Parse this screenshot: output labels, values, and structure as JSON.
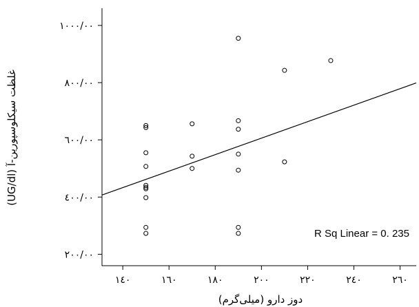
{
  "chart_data": {
    "type": "scatter",
    "title": "",
    "xlabel": "دوز دارو (میلی‌گرم)",
    "ylabel": "غلظت سیکلوسپورین-آ (UG/dl)",
    "xlim": [
      131,
      267
    ],
    "ylim": [
      160,
      1060
    ],
    "x_ticks": [
      140,
      160,
      180,
      200,
      220,
      240,
      260
    ],
    "x_tick_labels": [
      "١٤٠",
      "١٦٠",
      "١٨٠",
      "٢٠٠",
      "٢٢٠",
      "٢٤٠",
      "٢٦٠"
    ],
    "y_ticks": [
      200,
      400,
      600,
      800,
      1000
    ],
    "y_tick_labels": [
      "٢٠٠/٠٠",
      "٤٠٠/٠٠",
      "٦٠٠/٠٠",
      "٨٠٠/٠٠",
      "١٠٠٠/٠٠"
    ],
    "grid": false,
    "legend": "none",
    "points": [
      {
        "x": 150,
        "y": 650
      },
      {
        "x": 150,
        "y": 643
      },
      {
        "x": 150,
        "y": 555
      },
      {
        "x": 150,
        "y": 507
      },
      {
        "x": 150,
        "y": 441
      },
      {
        "x": 150,
        "y": 434
      },
      {
        "x": 150,
        "y": 429
      },
      {
        "x": 150,
        "y": 398
      },
      {
        "x": 150,
        "y": 294
      },
      {
        "x": 150,
        "y": 273
      },
      {
        "x": 170,
        "y": 656
      },
      {
        "x": 170,
        "y": 543
      },
      {
        "x": 170,
        "y": 500
      },
      {
        "x": 190,
        "y": 955
      },
      {
        "x": 190,
        "y": 667
      },
      {
        "x": 190,
        "y": 637
      },
      {
        "x": 190,
        "y": 550
      },
      {
        "x": 190,
        "y": 494
      },
      {
        "x": 190,
        "y": 294
      },
      {
        "x": 190,
        "y": 273
      },
      {
        "x": 210,
        "y": 843
      },
      {
        "x": 210,
        "y": 523
      },
      {
        "x": 230,
        "y": 877
      }
    ],
    "fit_line": {
      "x": [
        131,
        267
      ],
      "y": [
        407,
        799
      ]
    },
    "annotation": "R Sq Linear = 0. 235"
  }
}
